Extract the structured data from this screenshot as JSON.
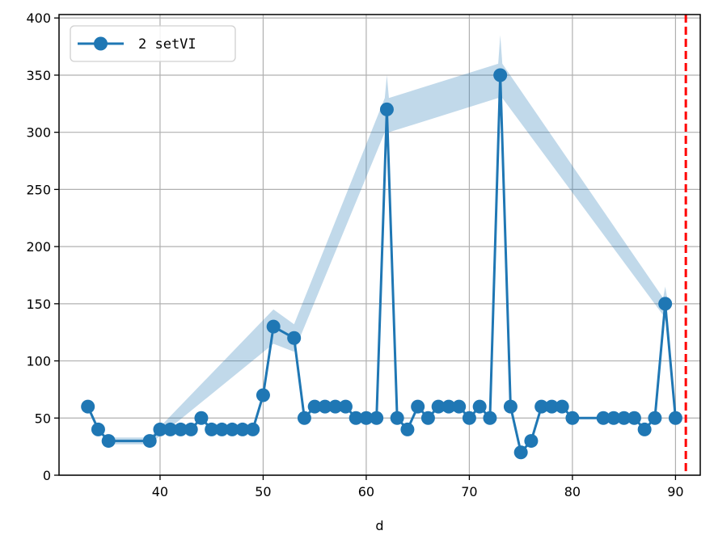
{
  "chart_data": {
    "type": "line",
    "title": "",
    "xlabel": "d",
    "ylabel": "",
    "xlim": [
      30.2,
      92.4
    ],
    "ylim": [
      0,
      403
    ],
    "xticks": [
      40,
      50,
      60,
      70,
      80,
      90
    ],
    "yticks": [
      0,
      50,
      100,
      150,
      200,
      250,
      300,
      350,
      400
    ],
    "grid": true,
    "legend_position": "top-left",
    "series": [
      {
        "name": "2 setVI",
        "color": "#1f77b4",
        "marker": "circle",
        "x": [
          33,
          34,
          35,
          39,
          40,
          41,
          42,
          43,
          44,
          45,
          46,
          47,
          48,
          49,
          50,
          51,
          53,
          54,
          55,
          56,
          57,
          58,
          59,
          60,
          61,
          62,
          63,
          64,
          65,
          66,
          67,
          68,
          69,
          70,
          71,
          72,
          73,
          74,
          75,
          76,
          77,
          78,
          79,
          80,
          83,
          84,
          85,
          86,
          87,
          88,
          89,
          90
        ],
        "y": [
          60,
          40,
          30,
          30,
          40,
          40,
          40,
          40,
          50,
          40,
          40,
          40,
          40,
          40,
          70,
          130,
          120,
          50,
          60,
          60,
          60,
          60,
          50,
          50,
          50,
          320,
          50,
          40,
          60,
          50,
          60,
          60,
          60,
          50,
          60,
          50,
          350,
          60,
          20,
          30,
          60,
          60,
          60,
          50,
          50,
          50,
          50,
          50,
          40,
          50,
          150,
          50
        ],
        "band": {
          "x": [
            35,
            39,
            51,
            53,
            61.8,
            62,
            62.2,
            72.8,
            73,
            73.2,
            88.8,
            89,
            89.2
          ],
          "lower": [
            27,
            27,
            115,
            108,
            300,
            290,
            300,
            330,
            320,
            330,
            140,
            135,
            140
          ],
          "upper": [
            33,
            33,
            145,
            132,
            330,
            350,
            330,
            360,
            385,
            360,
            155,
            165,
            155
          ]
        }
      }
    ],
    "reference_lines": [
      {
        "orientation": "vertical",
        "x": 91,
        "color": "#ff0000",
        "style": "dashed"
      }
    ]
  }
}
